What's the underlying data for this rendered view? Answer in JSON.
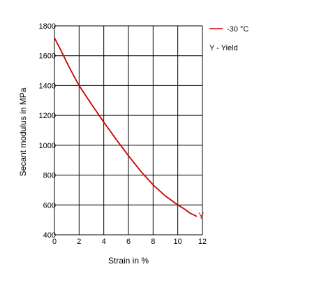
{
  "chart_data": {
    "type": "line",
    "xlabel": "Strain in %",
    "ylabel": "Secant modulus in MPa",
    "xlim": [
      0,
      12
    ],
    "ylim": [
      400,
      1800
    ],
    "x_ticks": [
      0,
      2,
      4,
      6,
      8,
      10,
      12
    ],
    "y_ticks": [
      400,
      600,
      800,
      1000,
      1200,
      1400,
      1600,
      1800
    ],
    "grid": true,
    "series": [
      {
        "name": "-30 °C",
        "color": "#cc0000",
        "x": [
          0,
          0.5,
          1,
          1.5,
          2,
          3,
          4,
          5,
          6,
          7,
          8,
          9,
          10,
          10.5,
          11,
          11.5
        ],
        "y": [
          1720,
          1640,
          1555,
          1475,
          1400,
          1275,
          1155,
          1040,
          930,
          825,
          735,
          660,
          600,
          575,
          545,
          525
        ],
        "yield_marker": {
          "x": 11.9,
          "y": 530,
          "symbol": "Y"
        }
      }
    ],
    "legend": {
      "position": "top-right",
      "entries": [
        "-30 °C",
        "Y - Yield"
      ]
    }
  }
}
